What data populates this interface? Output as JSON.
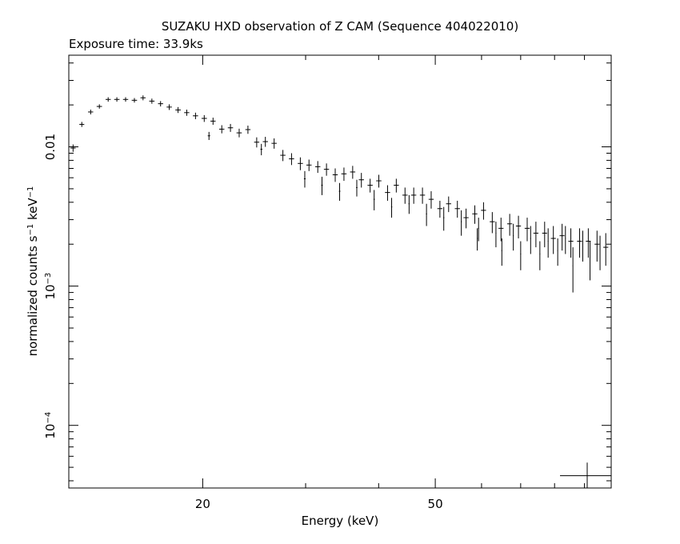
{
  "chart_data": {
    "type": "scatter",
    "title": "SUZAKU HXD observation of Z CAM (Sequence 404022010)",
    "subtitle": "Exposure time: 33.9ks",
    "xlabel": "Energy (keV)",
    "ylabel_base": "normalized counts s",
    "ylabel_unit": "keV",
    "ylabel_exp": "−1",
    "x_scale": "log",
    "y_scale": "log",
    "xlim": [
      11.8,
      100
    ],
    "ylim": [
      3.55e-05,
      0.0455
    ],
    "x_ticklabels": [
      "20",
      "50"
    ],
    "y_ticklabels": [
      {
        "base": "10",
        "exp": "−4",
        "value": 0.0001
      },
      {
        "base": "10",
        "exp": "−3",
        "value": 0.001
      },
      {
        "base": "0.01",
        "exp": "",
        "value": 0.01
      }
    ],
    "grid": false,
    "legend": "none",
    "points": [
      [
        12.0,
        0.0098,
        0.12,
        0.0006
      ],
      [
        12.42,
        0.0145,
        0.12,
        0.0006
      ],
      [
        12.86,
        0.0178,
        0.13,
        0.0007
      ],
      [
        13.31,
        0.0195,
        0.14,
        0.0007
      ],
      [
        13.78,
        0.0219,
        0.14,
        0.0008
      ],
      [
        14.26,
        0.0219,
        0.15,
        0.0008
      ],
      [
        14.76,
        0.0219,
        0.15,
        0.0008
      ],
      [
        15.28,
        0.0216,
        0.16,
        0.0008
      ],
      [
        15.81,
        0.0225,
        0.16,
        0.0009
      ],
      [
        16.37,
        0.0213,
        0.17,
        0.0009
      ],
      [
        16.94,
        0.0204,
        0.17,
        0.0009
      ],
      [
        17.53,
        0.0193,
        0.18,
        0.0009
      ],
      [
        18.15,
        0.0184,
        0.19,
        0.0009
      ],
      [
        18.78,
        0.0176,
        0.19,
        0.0009
      ],
      [
        19.44,
        0.0167,
        0.2,
        0.0009
      ],
      [
        20.12,
        0.016,
        0.21,
        0.0009
      ],
      [
        20.83,
        0.0153,
        0.21,
        0.0009
      ],
      [
        21.56,
        0.0134,
        0.22,
        0.0009
      ],
      [
        22.31,
        0.0137,
        0.23,
        0.0009
      ],
      [
        23.09,
        0.0126,
        0.24,
        0.0009
      ],
      [
        23.9,
        0.0133,
        0.24,
        0.0009
      ],
      [
        24.74,
        0.0108,
        0.25,
        0.0009
      ],
      [
        25.6,
        0.0109,
        0.26,
        0.0009
      ],
      [
        26.5,
        0.0106,
        0.27,
        0.0009
      ],
      [
        27.43,
        0.0087,
        0.28,
        0.0008
      ],
      [
        28.38,
        0.0082,
        0.29,
        0.0008
      ],
      [
        29.38,
        0.0076,
        0.3,
        0.0008
      ],
      [
        30.4,
        0.0074,
        0.31,
        0.0007
      ],
      [
        31.47,
        0.0072,
        0.32,
        0.0007
      ],
      [
        32.57,
        0.0069,
        0.33,
        0.0007
      ],
      [
        33.71,
        0.0063,
        0.34,
        0.0007
      ],
      [
        34.89,
        0.0064,
        0.36,
        0.0007
      ],
      [
        36.11,
        0.0066,
        0.37,
        0.0007
      ],
      [
        37.37,
        0.0058,
        0.38,
        0.0007
      ],
      [
        38.68,
        0.0053,
        0.39,
        0.0006
      ],
      [
        40.03,
        0.0057,
        0.41,
        0.0006
      ],
      [
        41.43,
        0.0047,
        0.42,
        0.0006
      ],
      [
        42.88,
        0.0053,
        0.43,
        0.0006
      ],
      [
        44.38,
        0.0045,
        0.45,
        0.0006
      ],
      [
        45.93,
        0.0045,
        0.46,
        0.0006
      ],
      [
        47.54,
        0.0045,
        0.48,
        0.0006
      ],
      [
        49.2,
        0.0042,
        0.49,
        0.0006
      ],
      [
        50.92,
        0.0036,
        0.51,
        0.0005
      ],
      [
        52.7,
        0.0039,
        0.53,
        0.0005
      ],
      [
        54.55,
        0.0036,
        0.55,
        0.0005
      ],
      [
        56.45,
        0.0031,
        0.56,
        0.0005
      ],
      [
        58.43,
        0.0033,
        0.58,
        0.0005
      ],
      [
        60.47,
        0.0035,
        0.6,
        0.0005
      ],
      [
        62.59,
        0.0029,
        0.62,
        0.0005
      ],
      [
        64.78,
        0.0026,
        0.64,
        0.0005
      ],
      [
        67.04,
        0.0028,
        0.66,
        0.0005
      ],
      [
        69.39,
        0.0027,
        0.69,
        0.0005
      ],
      [
        71.82,
        0.0026,
        0.71,
        0.0005
      ],
      [
        74.33,
        0.0024,
        0.73,
        0.0005
      ],
      [
        76.93,
        0.0024,
        0.75,
        0.0005
      ],
      [
        79.62,
        0.0022,
        0.78,
        0.0005
      ],
      [
        82.41,
        0.0023,
        0.8,
        0.0005
      ],
      [
        85.3,
        0.0021,
        0.83,
        0.0005
      ],
      [
        88.28,
        0.0021,
        0.86,
        0.0005
      ],
      [
        91.37,
        0.0021,
        0.89,
        0.0005
      ],
      [
        94.57,
        0.002,
        0.92,
        0.0005
      ],
      [
        97.88,
        0.0019,
        0.95,
        0.0005
      ],
      [
        20.5,
        0.012,
        0.1,
        0.0008
      ],
      [
        25.2,
        0.0096,
        0.1,
        0.0009
      ],
      [
        29.9,
        0.0059,
        0.1,
        0.0008
      ],
      [
        32.0,
        0.0053,
        0.1,
        0.0008
      ],
      [
        34.3,
        0.0048,
        0.1,
        0.0007
      ],
      [
        36.7,
        0.0051,
        0.1,
        0.0007
      ],
      [
        39.3,
        0.0042,
        0.1,
        0.0007
      ],
      [
        42.1,
        0.0037,
        0.1,
        0.0006
      ],
      [
        45.1,
        0.0039,
        0.1,
        0.0006
      ],
      [
        48.3,
        0.0033,
        0.1,
        0.0006
      ],
      [
        51.7,
        0.0031,
        0.1,
        0.0006
      ],
      [
        55.4,
        0.0029,
        0.1,
        0.0006
      ],
      [
        59.3,
        0.0026,
        0.1,
        0.0005
      ],
      [
        63.5,
        0.0024,
        0.1,
        0.0005
      ],
      [
        68.0,
        0.0023,
        0.1,
        0.0005
      ],
      [
        72.8,
        0.0022,
        0.1,
        0.0005
      ],
      [
        78.0,
        0.0021,
        0.1,
        0.0005
      ],
      [
        83.5,
        0.0022,
        0.1,
        0.0005
      ],
      [
        89.4,
        0.002,
        0.1,
        0.0005
      ],
      [
        95.7,
        0.0018,
        0.1,
        0.0005
      ],
      [
        86.0,
        0.0014,
        0.1,
        0.0005
      ],
      [
        92.0,
        0.0016,
        0.1,
        0.0005
      ],
      [
        65.0,
        0.0018,
        0.1,
        0.0004
      ],
      [
        70.0,
        0.0017,
        0.1,
        0.0004
      ],
      [
        75.5,
        0.0017,
        0.1,
        0.0004
      ],
      [
        81.0,
        0.0018,
        0.1,
        0.0004
      ],
      [
        59.0,
        0.0022,
        0.1,
        0.0004
      ]
    ],
    "reference_cross": {
      "x": 150.0,
      "y": 4.35e-05,
      "xerr": 20.0,
      "yerr": 1.05e-05
    }
  },
  "colors": {
    "background": "#ffffff",
    "ink": "#000000"
  }
}
